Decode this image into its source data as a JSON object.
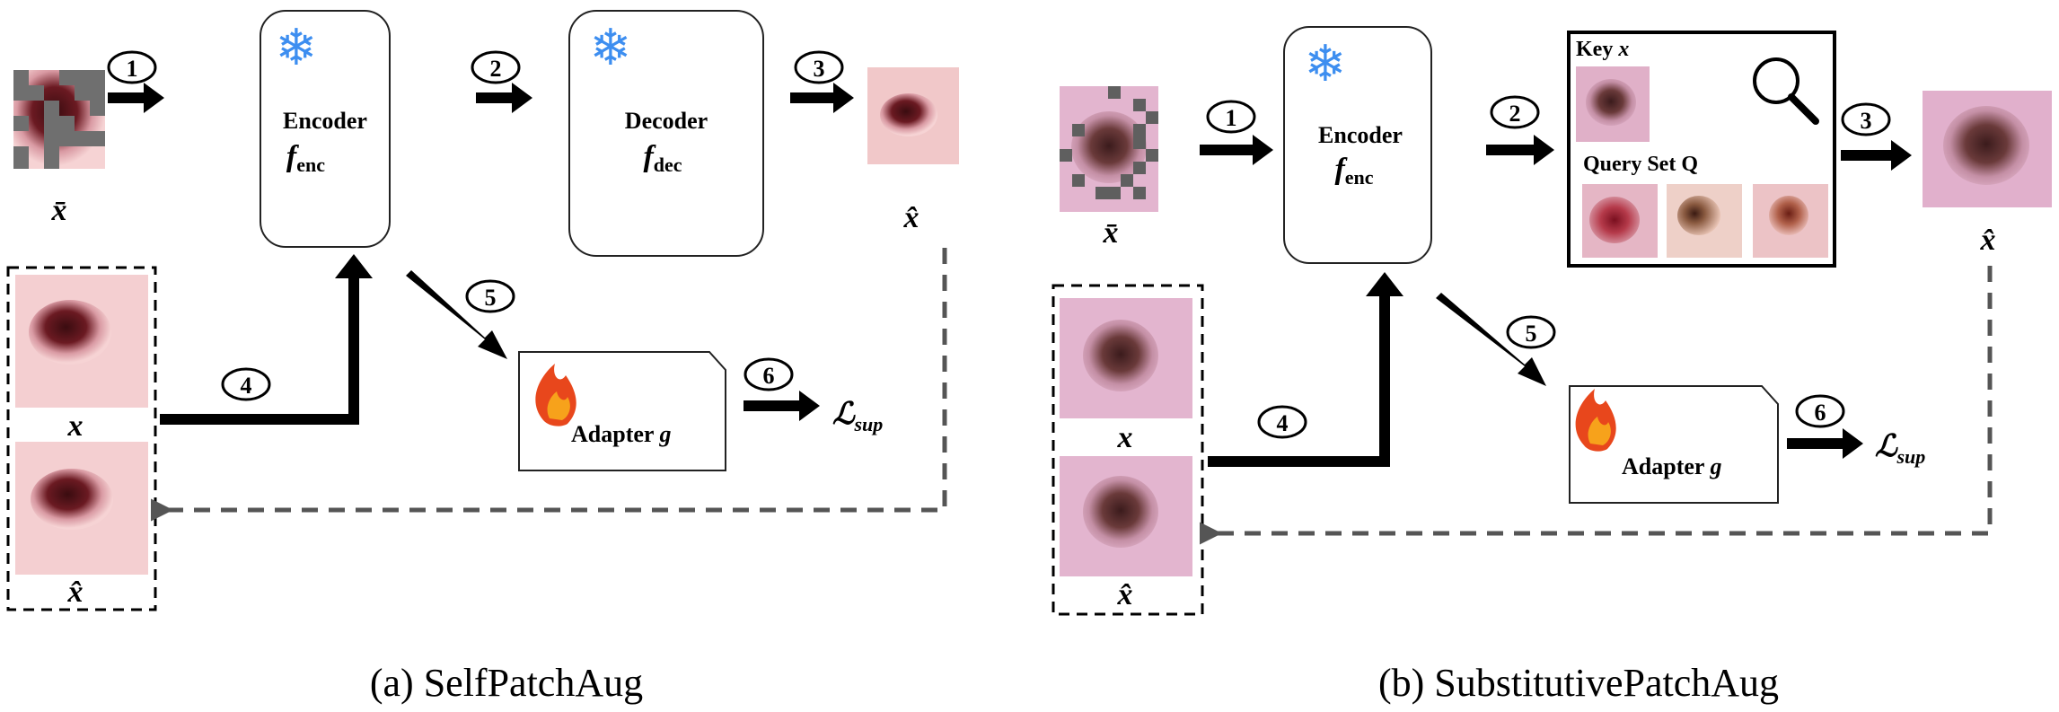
{
  "panels": [
    {
      "id": "a",
      "caption": "(a) SelfPatchAug",
      "masked_label": "x̄",
      "encoder": {
        "title": "Encoder",
        "symbol": "f",
        "sub": "enc"
      },
      "decoder": {
        "title": "Decoder",
        "symbol": "f",
        "sub": "dec"
      },
      "output_label": "x̂",
      "pair_labels": [
        "x",
        "x̂"
      ],
      "adapter": {
        "title": "Adapter",
        "symbol": "g"
      },
      "loss": {
        "symbol": "ℒ",
        "sub": "sup"
      },
      "steps": [
        "1",
        "2",
        "3",
        "4",
        "5",
        "6"
      ]
    },
    {
      "id": "b",
      "caption": "(b) SubstitutivePatchAug",
      "masked_label": "x̄",
      "encoder": {
        "title": "Encoder",
        "symbol": "f",
        "sub": "enc"
      },
      "retrieval": {
        "key_title": "Key",
        "key_symbol": "x",
        "query_title": "Query Set Q"
      },
      "output_label": "x̂",
      "pair_labels": [
        "x",
        "x̂"
      ],
      "adapter": {
        "title": "Adapter",
        "symbol": "g"
      },
      "loss": {
        "symbol": "ℒ",
        "sub": "sup"
      },
      "steps": [
        "1",
        "2",
        "3",
        "4",
        "5",
        "6"
      ]
    }
  ],
  "colors": {
    "frozen_icon": "#3d8ef0",
    "flame_outer": "#e8471c",
    "flame_inner": "#f7a21b",
    "skin": "#f2c6c8",
    "lesion": "#5a1418",
    "mask_gray": "#6f6f6f",
    "feedback_dash": "#555555"
  }
}
